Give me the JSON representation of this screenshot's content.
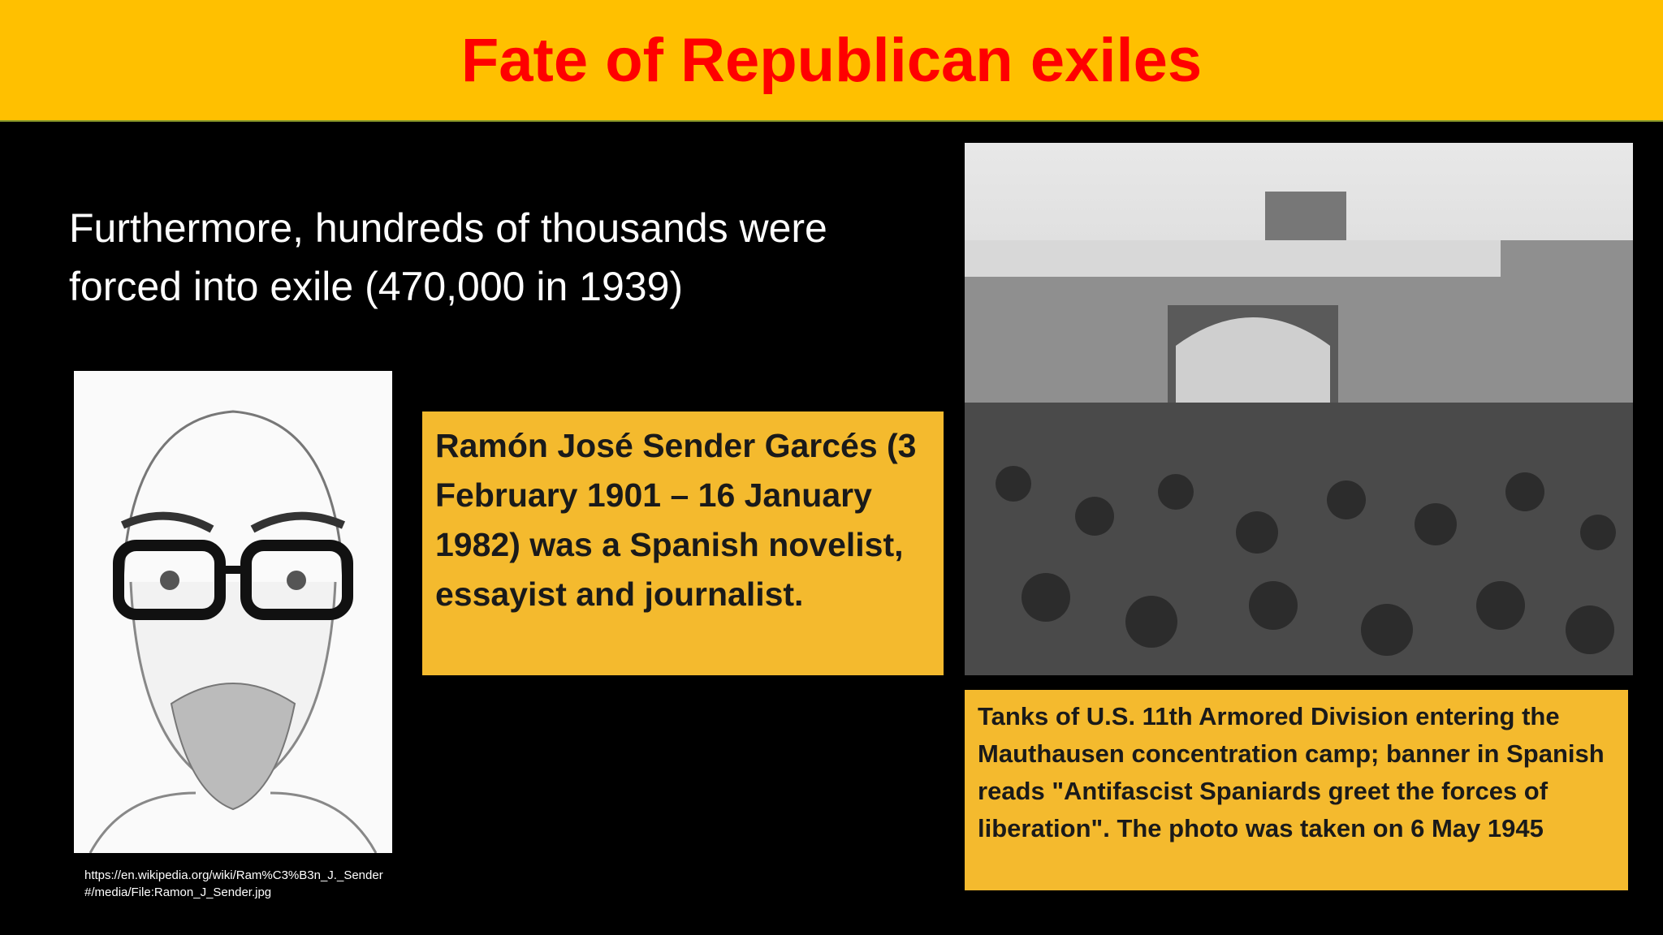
{
  "header": {
    "title": "Fate of Republican exiles"
  },
  "body": {
    "text": "Furthermore, hundreds of thousands were forced into exile (470,000 in 1939)"
  },
  "portrait": {
    "source_url": "https://en.wikipedia.org/wiki/Ram%C3%B3n_J._Sender#/media/File:Ramon_J_Sender.jpg"
  },
  "info_box": {
    "text": "Ramón José Sender Garcés (3 February 1901 – 16 January 1982) was a Spanish novelist, essayist and journalist."
  },
  "photo": {
    "caption": "Tanks of U.S. 11th Armored Division entering the Mauthausen concentration camp; banner in Spanish reads \"Antifascist Spaniards greet the forces of liberation\". The photo was taken on 6 May 1945"
  }
}
